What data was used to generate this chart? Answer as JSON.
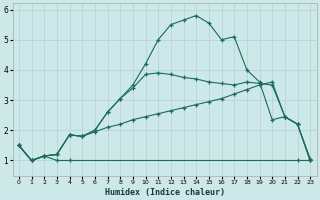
{
  "xlabel": "Humidex (Indice chaleur)",
  "background_color": "#cce8e8",
  "grid_color": "#b8d4d4",
  "line_color": "#1a6b5a",
  "xlim": [
    -0.5,
    23.5
  ],
  "ylim": [
    0.5,
    6.2
  ],
  "xticks": [
    0,
    1,
    2,
    3,
    4,
    5,
    6,
    7,
    8,
    9,
    10,
    11,
    12,
    13,
    14,
    15,
    16,
    17,
    18,
    19,
    20,
    21,
    22,
    23
  ],
  "yticks": [
    1,
    2,
    3,
    4,
    5,
    6
  ],
  "series": [
    {
      "x": [
        0,
        1,
        2,
        3,
        4,
        22,
        23
      ],
      "y": [
        1.5,
        1.0,
        1.15,
        1.0,
        1.0,
        1.0,
        1.0
      ]
    },
    {
      "x": [
        0,
        1,
        2,
        3,
        4,
        5,
        6,
        7,
        8,
        9,
        10,
        11,
        12,
        13,
        14,
        15,
        16,
        17,
        18,
        19,
        20,
        21,
        22,
        23
      ],
      "y": [
        1.5,
        1.0,
        1.15,
        1.2,
        1.85,
        1.8,
        1.95,
        2.1,
        2.2,
        2.35,
        2.45,
        2.55,
        2.65,
        2.75,
        2.85,
        2.95,
        3.05,
        3.2,
        3.35,
        3.5,
        3.6,
        2.45,
        2.2,
        1.0
      ]
    },
    {
      "x": [
        0,
        1,
        2,
        3,
        4,
        5,
        6,
        7,
        8,
        9,
        10,
        11,
        12,
        13,
        14,
        15,
        16,
        17,
        18,
        19,
        20,
        21,
        22,
        23
      ],
      "y": [
        1.5,
        1.0,
        1.15,
        1.2,
        1.85,
        1.8,
        2.0,
        2.6,
        3.05,
        3.4,
        3.85,
        3.9,
        3.85,
        3.75,
        3.7,
        3.6,
        3.55,
        3.5,
        3.6,
        3.55,
        3.5,
        2.45,
        2.2,
        1.0
      ]
    },
    {
      "x": [
        0,
        1,
        2,
        3,
        4,
        5,
        6,
        7,
        8,
        9,
        10,
        11,
        12,
        13,
        14,
        15,
        16,
        17,
        18,
        19,
        20,
        21,
        22,
        23
      ],
      "y": [
        1.5,
        1.0,
        1.15,
        1.2,
        1.85,
        1.8,
        2.0,
        2.6,
        3.05,
        3.5,
        4.2,
        5.0,
        5.5,
        5.65,
        5.8,
        5.55,
        5.0,
        5.1,
        4.0,
        3.6,
        2.35,
        2.45,
        2.2,
        1.05
      ]
    }
  ]
}
